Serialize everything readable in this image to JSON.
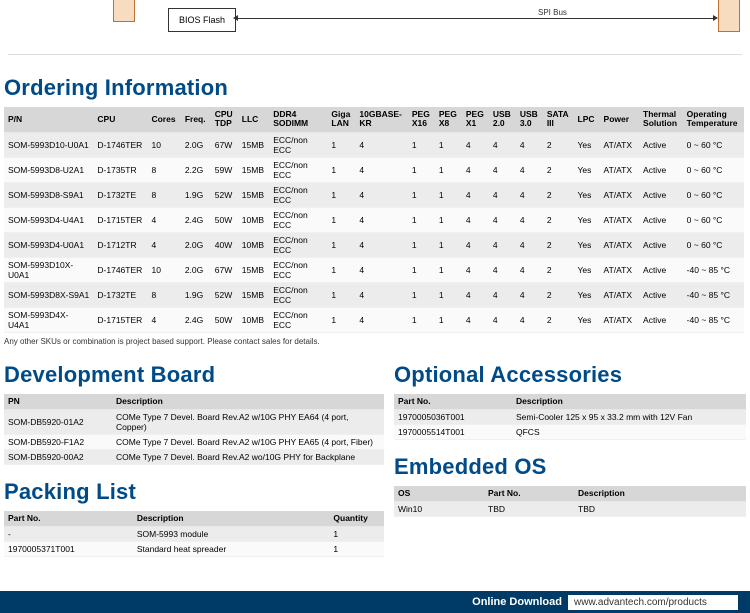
{
  "diagram": {
    "bios_box": "BIOS Flash",
    "spi_label": "SPI Bus",
    "left_block_color": "#f8dcc0",
    "right_block_color": "#f8dcc0"
  },
  "sections": {
    "ordering": "Ordering Information",
    "devboard": "Development Board",
    "packing": "Packing List",
    "accessories": "Optional Accessories",
    "os": "Embedded OS"
  },
  "ordering": {
    "columns": [
      "P/N",
      "CPU",
      "Cores",
      "Freq.",
      "CPU TDP",
      "LLC",
      "DDR4 SODIMM",
      "Giga LAN",
      "10GBASE-KR",
      "PEG X16",
      "PEG X8",
      "PEG X1",
      "USB 2.0",
      "USB 3.0",
      "SATA III",
      "LPC",
      "Power",
      "Thermal Solution",
      "Operating Temperature"
    ],
    "rows": [
      [
        "SOM-5993D10-U0A1",
        "D-1746TER",
        "10",
        "2.0G",
        "67W",
        "15MB",
        "ECC/non ECC",
        "1",
        "4",
        "1",
        "1",
        "4",
        "4",
        "4",
        "2",
        "Yes",
        "AT/ATX",
        "Active",
        "0 ~ 60 °C"
      ],
      [
        "SOM-5993D8-U2A1",
        "D-1735TR",
        "8",
        "2.2G",
        "59W",
        "15MB",
        "ECC/non ECC",
        "1",
        "4",
        "1",
        "1",
        "4",
        "4",
        "4",
        "2",
        "Yes",
        "AT/ATX",
        "Active",
        "0 ~ 60 °C"
      ],
      [
        "SOM-5993D8-S9A1",
        "D-1732TE",
        "8",
        "1.9G",
        "52W",
        "15MB",
        "ECC/non ECC",
        "1",
        "4",
        "1",
        "1",
        "4",
        "4",
        "4",
        "2",
        "Yes",
        "AT/ATX",
        "Active",
        "0 ~ 60 °C"
      ],
      [
        "SOM-5993D4-U4A1",
        "D-1715TER",
        "4",
        "2.4G",
        "50W",
        "10MB",
        "ECC/non ECC",
        "1",
        "4",
        "1",
        "1",
        "4",
        "4",
        "4",
        "2",
        "Yes",
        "AT/ATX",
        "Active",
        "0 ~ 60 °C"
      ],
      [
        "SOM-5993D4-U0A1",
        "D-1712TR",
        "4",
        "2.0G",
        "40W",
        "10MB",
        "ECC/non ECC",
        "1",
        "4",
        "1",
        "1",
        "4",
        "4",
        "4",
        "2",
        "Yes",
        "AT/ATX",
        "Active",
        "0 ~ 60 °C"
      ],
      [
        "SOM-5993D10X-U0A1",
        "D-1746TER",
        "10",
        "2.0G",
        "67W",
        "15MB",
        "ECC/non ECC",
        "1",
        "4",
        "1",
        "1",
        "4",
        "4",
        "4",
        "2",
        "Yes",
        "AT/ATX",
        "Active",
        "-40 ~ 85 °C"
      ],
      [
        "SOM-5993D8X-S9A1",
        "D-1732TE",
        "8",
        "1.9G",
        "52W",
        "15MB",
        "ECC/non ECC",
        "1",
        "4",
        "1",
        "1",
        "4",
        "4",
        "4",
        "2",
        "Yes",
        "AT/ATX",
        "Active",
        "-40 ~ 85 °C"
      ],
      [
        "SOM-5993D4X-U4A1",
        "D-1715TER",
        "4",
        "2.4G",
        "50W",
        "10MB",
        "ECC/non ECC",
        "1",
        "4",
        "1",
        "1",
        "4",
        "4",
        "4",
        "2",
        "Yes",
        "AT/ATX",
        "Active",
        "-40 ~ 85 °C"
      ]
    ],
    "note": "Any other SKUs or combination is project based support. Please contact sales for details."
  },
  "devboard": {
    "columns": [
      "PN",
      "Description"
    ],
    "rows": [
      [
        "SOM-DB5920-01A2",
        "COMe Type 7 Devel. Board Rev.A2 w/10G PHY EA64 (4 port, Copper)"
      ],
      [
        "SOM-DB5920-F1A2",
        "COMe Type 7 Devel. Board Rev.A2 w/10G PHY EA65 (4 port, Fiber)"
      ],
      [
        "SOM-DB5920-00A2",
        "COMe Type 7 Devel. Board Rev.A2  wo/10G PHY for Backplane"
      ]
    ]
  },
  "packing": {
    "columns": [
      "Part No.",
      "Description",
      "Quantity"
    ],
    "rows": [
      [
        "-",
        "SOM-5993 module",
        "1"
      ],
      [
        "1970005371T001",
        "Standard heat spreader",
        "1"
      ]
    ]
  },
  "accessories": {
    "columns": [
      "Part No.",
      "Description"
    ],
    "rows": [
      [
        "1970005036T001",
        "Semi-Cooler 125 x 95 x 33.2 mm with 12V Fan"
      ],
      [
        "1970005514T001",
        "QFCS"
      ]
    ]
  },
  "os": {
    "columns": [
      "OS",
      "Part No.",
      "Description"
    ],
    "rows": [
      [
        "Win10",
        "TBD",
        "TBD"
      ]
    ]
  },
  "footer": {
    "label": "Online Download",
    "url": "www.advantech.com/products"
  }
}
